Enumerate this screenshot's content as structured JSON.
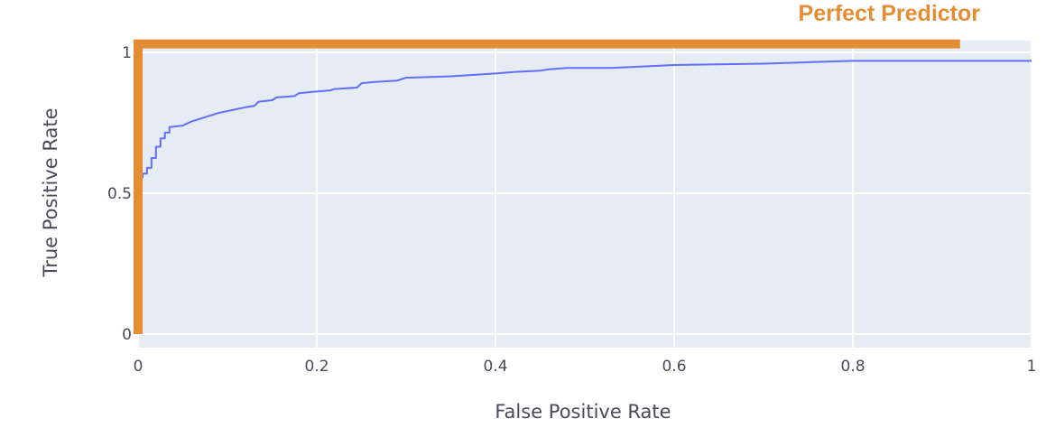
{
  "chart_data": {
    "type": "line",
    "xlabel": "False Positive Rate",
    "ylabel": "True Positive Rate",
    "xlim": [
      0,
      1
    ],
    "ylim": [
      0,
      1
    ],
    "x_ticks": [
      {
        "value": 0,
        "label": "0"
      },
      {
        "value": 0.2,
        "label": "0.2"
      },
      {
        "value": 0.4,
        "label": "0.4"
      },
      {
        "value": 0.6,
        "label": "0.6"
      },
      {
        "value": 0.8,
        "label": "0.8"
      },
      {
        "value": 1,
        "label": "1"
      }
    ],
    "y_ticks": [
      {
        "value": 0,
        "label": "0"
      },
      {
        "value": 0.5,
        "label": "0.5"
      },
      {
        "value": 1,
        "label": "1"
      }
    ],
    "grid": true,
    "plot_background": "#e5ecf6",
    "series": [
      {
        "color": "#636efa",
        "x": [
          0.0,
          0.0,
          0.005,
          0.005,
          0.01,
          0.01,
          0.015,
          0.015,
          0.02,
          0.02,
          0.025,
          0.025,
          0.03,
          0.03,
          0.035,
          0.035,
          0.05,
          0.06,
          0.075,
          0.09,
          0.105,
          0.12,
          0.13,
          0.135,
          0.15,
          0.155,
          0.175,
          0.18,
          0.195,
          0.215,
          0.22,
          0.245,
          0.25,
          0.265,
          0.29,
          0.3,
          0.35,
          0.4,
          0.42,
          0.45,
          0.46,
          0.48,
          0.53,
          0.565,
          0.6,
          0.7,
          0.75,
          0.8,
          0.85,
          1.0
        ],
        "y": [
          0.53,
          0.555,
          0.555,
          0.57,
          0.57,
          0.59,
          0.59,
          0.625,
          0.625,
          0.665,
          0.665,
          0.695,
          0.695,
          0.715,
          0.715,
          0.735,
          0.74,
          0.755,
          0.77,
          0.785,
          0.795,
          0.805,
          0.81,
          0.825,
          0.83,
          0.84,
          0.845,
          0.855,
          0.86,
          0.865,
          0.87,
          0.875,
          0.89,
          0.895,
          0.9,
          0.91,
          0.915,
          0.925,
          0.93,
          0.935,
          0.94,
          0.945,
          0.945,
          0.95,
          0.955,
          0.96,
          0.965,
          0.97,
          0.97,
          0.97
        ]
      }
    ],
    "annotation": {
      "label": "Perfect Predictor",
      "color": "#e38e35",
      "path_x": [
        0,
        0,
        0.92
      ],
      "path_y": [
        0,
        1.03,
        1.03
      ]
    }
  }
}
